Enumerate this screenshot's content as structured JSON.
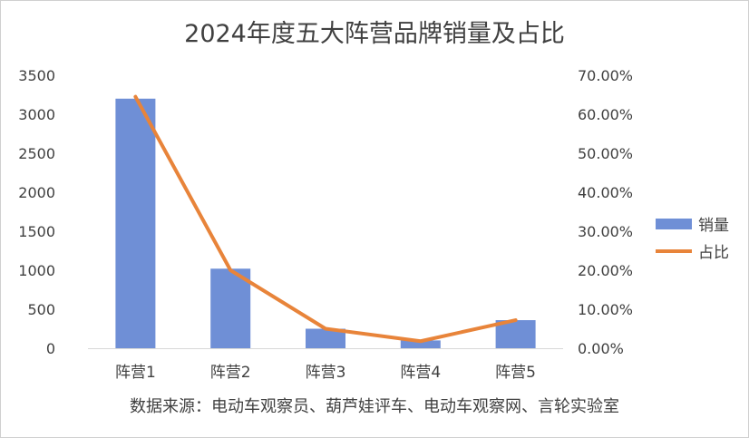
{
  "chart_data": {
    "type": "bar",
    "title": "2024年度五大阵营品牌销量及占比",
    "categories": [
      "阵营1",
      "阵营2",
      "阵营3",
      "阵营4",
      "阵营5"
    ],
    "series": [
      {
        "name": "销量",
        "type": "bar",
        "axis": "left",
        "values": [
          3200,
          1020,
          250,
          100,
          360
        ],
        "color": "#6f8fd6"
      },
      {
        "name": "占比",
        "type": "line",
        "axis": "right",
        "values": [
          0.645,
          0.2,
          0.05,
          0.018,
          0.072
        ],
        "color": "#e8843a"
      }
    ],
    "y_left": {
      "min": 0,
      "max": 3500,
      "ticks": [
        "0",
        "500",
        "1000",
        "1500",
        "2000",
        "2500",
        "3000",
        "3500"
      ]
    },
    "y_right": {
      "min": 0,
      "max": 0.7,
      "ticks": [
        "0.00%",
        "10.00%",
        "20.00%",
        "30.00%",
        "40.00%",
        "50.00%",
        "60.00%",
        "70.00%"
      ]
    },
    "grid": false,
    "legend_position": "right",
    "source": "数据来源：电动车观察员、葫芦娃评车、电动车观察网、言轮实验室"
  }
}
